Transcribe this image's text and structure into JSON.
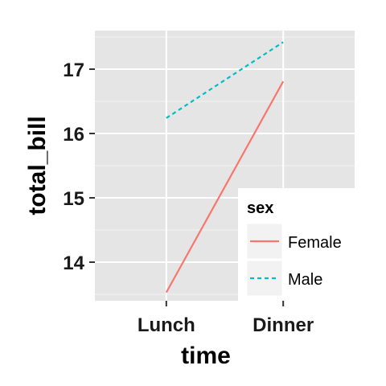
{
  "chart_data": {
    "type": "line",
    "categories": [
      "Lunch",
      "Dinner"
    ],
    "series": [
      {
        "name": "Female",
        "values": [
          13.53,
          16.81
        ],
        "color": "#F8766D",
        "linetype": "solid"
      },
      {
        "name": "Male",
        "values": [
          16.24,
          17.42
        ],
        "color": "#00BFC4",
        "linetype": "dashed"
      }
    ],
    "xlabel": "time",
    "ylabel": "total_bill",
    "ylim": [
      13.4,
      17.6
    ],
    "yticks": [
      14,
      15,
      16,
      17
    ],
    "ytick_labels": [
      "14",
      "15",
      "16",
      "17"
    ],
    "legend": {
      "title": "sex",
      "position": "right"
    },
    "grid": true,
    "background": "#E5E5E5",
    "grid_color": "#FFFFFF"
  }
}
